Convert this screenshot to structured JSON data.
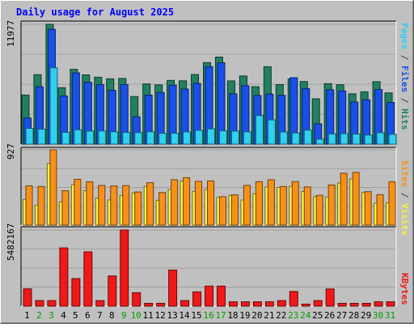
{
  "chart_data": {
    "type": "bar",
    "title": "Daily usage for August 2025",
    "categories": [
      "1",
      "2",
      "3",
      "4",
      "5",
      "6",
      "7",
      "8",
      "9",
      "10",
      "11",
      "12",
      "13",
      "14",
      "15",
      "16",
      "17",
      "18",
      "19",
      "20",
      "21",
      "22",
      "23",
      "24",
      "25",
      "26",
      "27",
      "28",
      "29",
      "30",
      "31"
    ],
    "weekend_days": [
      "2",
      "3",
      "9",
      "10",
      "16",
      "17",
      "23",
      "24",
      "30",
      "31"
    ],
    "panels": [
      {
        "id": "hits",
        "max_label": "11977",
        "ymax": 11977,
        "series": [
          {
            "name": "Hits",
            "color": "#208060",
            "values": [
              4910,
              6940,
              11977,
              5640,
              7480,
              6920,
              6690,
              6530,
              6570,
              4760,
              6020,
              5920,
              6370,
              6330,
              6960,
              8150,
              8700,
              6320,
              6810,
              5740,
              7740,
              5950,
              6510,
              6260,
              4530,
              6050,
              5940,
              5030,
              5230,
              6240,
              5120
            ]
          },
          {
            "name": "Files",
            "color": "#1850e8",
            "values": [
              2610,
              5740,
              11470,
              4810,
              7120,
              6180,
              5940,
              5380,
              5960,
              2740,
              4900,
              5160,
              5890,
              5500,
              6070,
              7740,
              8130,
              5030,
              5830,
              4860,
              5000,
              4880,
              6640,
              5550,
              2030,
              5440,
              5310,
              4210,
              4430,
              5460,
              4170
            ]
          },
          {
            "name": "Pages",
            "color": "#30d0f0",
            "values": [
              1580,
              1490,
              7630,
              1180,
              1440,
              1300,
              1320,
              1240,
              1170,
              1150,
              1240,
              1080,
              1090,
              1220,
              1380,
              1530,
              1330,
              1310,
              1230,
              2860,
              2420,
              1220,
              1120,
              1400,
              500,
              1020,
              1050,
              1010,
              910,
              1140,
              980
            ]
          }
        ]
      },
      {
        "id": "sites",
        "max_label": "927",
        "ymax": 927,
        "series": [
          {
            "name": "Visits",
            "color": "#f8f040",
            "values": [
              316,
              246,
              759,
              288,
              498,
              422,
              333,
              310,
              365,
              395,
              476,
              306,
              437,
              542,
              415,
              438,
              342,
              368,
              309,
              387,
              469,
              464,
              478,
              414,
              351,
              347,
              518,
              570,
              401,
              269,
              275
            ]
          },
          {
            "name": "Sites",
            "color": "#f89018",
            "values": [
              484,
              475,
              927,
              423,
              564,
              533,
              488,
              483,
              487,
              408,
              522,
              401,
              559,
              584,
              539,
              544,
              350,
              372,
              489,
              535,
              559,
              475,
              536,
              470,
              367,
              494,
              639,
              650,
              412,
              376,
              535
            ]
          }
        ]
      },
      {
        "id": "kbytes",
        "max_label": "5482167",
        "ymax": 5482167,
        "series": [
          {
            "name": "KBytes",
            "color": "#f01818",
            "values": [
              1246500,
              400200,
              400200,
              4194500,
              1983500,
              3912400,
              400200,
              2171900,
              5482167,
              970000,
              203900,
              203900,
              2592900,
              400200,
              1029000,
              1443300,
              1443300,
              313400,
              313400,
              313400,
              313400,
              400200,
              1058700,
              146000,
              400200,
              1235600,
              203900,
              203900,
              203900,
              313400,
              313400
            ]
          }
        ]
      }
    ]
  },
  "labels": {
    "right_axis_top": [
      {
        "text": "Pages",
        "color": "#30d0f0"
      },
      {
        "text": " / ",
        "color": "#404040"
      },
      {
        "text": "Files",
        "color": "#1850e8"
      },
      {
        "text": " / ",
        "color": "#404040"
      },
      {
        "text": "Hits",
        "color": "#208060"
      }
    ],
    "right_axis_middle": [
      {
        "text": "Sites",
        "color": "#f89018"
      },
      {
        "text": " / ",
        "color": "#404040"
      },
      {
        "text": "Visits",
        "color": "#f8f040"
      }
    ],
    "right_axis_bottom": [
      {
        "text": "KBytes",
        "color": "#f01818"
      }
    ]
  },
  "colors": {
    "background": "#c0c0c0",
    "panel_line": "#707070",
    "title": "#0000ff",
    "weekday_label": "#000000",
    "weekend_label": "#00a000"
  }
}
